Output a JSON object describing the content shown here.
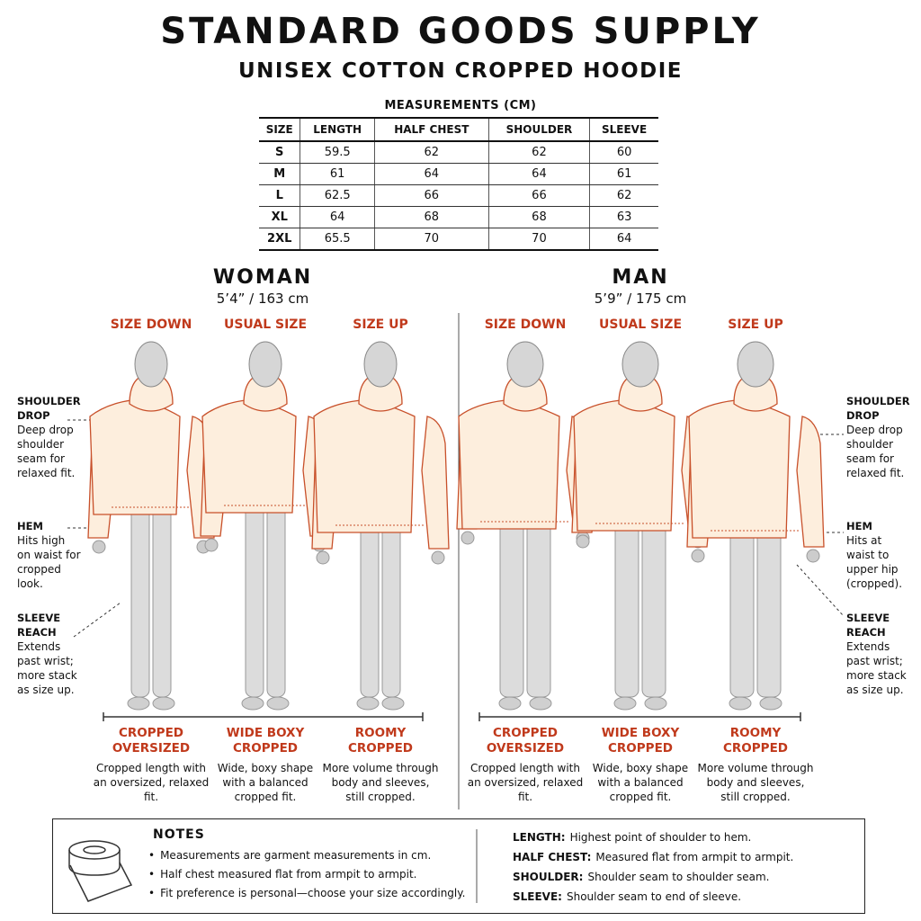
{
  "header": {
    "brand": "STANDARD GOODS SUPPLY",
    "product": "UNISEX COTTON CROPPED HOODIE"
  },
  "table": {
    "caption": "MEASUREMENTS (CM)",
    "columns": [
      "SIZE",
      "LENGTH",
      "HALF CHEST",
      "SHOULDER",
      "SLEEVE"
    ],
    "rows": [
      [
        "S",
        59.5,
        62,
        62,
        60
      ],
      [
        "M",
        61,
        64,
        64,
        61
      ],
      [
        "L",
        62.5,
        66,
        66,
        62
      ],
      [
        "XL",
        64,
        68,
        68,
        63
      ],
      [
        "2XL",
        65.5,
        70,
        70,
        64
      ]
    ]
  },
  "models": [
    {
      "title": "WOMAN",
      "height": "5’4” / 163 cm",
      "fits": [
        {
          "label": "SIZE DOWN",
          "name": "CROPPED OVERSIZED",
          "description": "Cropped length with an oversized, relaxed fit."
        },
        {
          "label": "USUAL SIZE",
          "name": "WIDE BOXY CROPPED",
          "description": "Wide, boxy shape with a balanced cropped fit."
        },
        {
          "label": "SIZE UP",
          "name": "ROOMY CROPPED",
          "description": "More volume through body and sleeves, still cropped."
        }
      ]
    },
    {
      "title": "MAN",
      "height": "5’9” / 175 cm",
      "fits": [
        {
          "label": "SIZE DOWN",
          "name": "CROPPED OVERSIZED",
          "description": "Cropped length with an oversized, relaxed fit."
        },
        {
          "label": "USUAL SIZE",
          "name": "WIDE BOXY CROPPED",
          "description": "Wide, boxy shape with a balanced cropped fit."
        },
        {
          "label": "SIZE UP",
          "name": "ROOMY CROPPED",
          "description": "More volume through body and sleeves, still cropped."
        }
      ]
    }
  ],
  "annotations": {
    "left": [
      {
        "term": "SHOULDER DROP",
        "text": "Deep drop shoulder seam for relaxed fit."
      },
      {
        "term": "HEM",
        "text": "Hits high on waist for cropped look."
      },
      {
        "term": "SLEEVE REACH",
        "text": "Extends past wrist; more stack as size up."
      }
    ],
    "right": [
      {
        "term": "SHOULDER DROP",
        "text": "Deep drop shoulder seam for relaxed fit."
      },
      {
        "term": "HEM",
        "text": "Hits at waist to upper hip (cropped)."
      },
      {
        "term": "SLEEVE REACH",
        "text": "Extends past wrist; more stack as size up."
      }
    ]
  },
  "notes": {
    "title": "NOTES",
    "bullets": [
      "Measurements are garment measurements in cm.",
      "Half chest measured flat from armpit to armpit.",
      "Fit preference is personal—choose your size accordingly."
    ],
    "definitions": [
      {
        "term": "LENGTH:",
        "text": "Highest point of shoulder to hem."
      },
      {
        "term": "HALF CHEST:",
        "text": "Measured flat from armpit to armpit."
      },
      {
        "term": "SHOULDER:",
        "text": "Shoulder seam to shoulder seam."
      },
      {
        "term": "SLEEVE:",
        "text": "Shoulder seam to end of sleeve."
      }
    ]
  }
}
